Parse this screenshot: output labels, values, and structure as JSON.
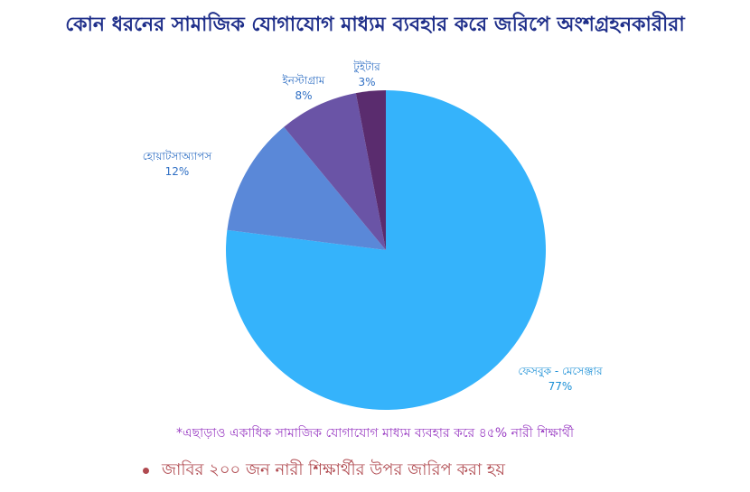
{
  "chart_data": {
    "type": "pie",
    "title": "কোন ধরনের সামাজিক যোগাযোগ মাধ্যম ব্যবহার করে জরিপে অংশগ্রহনকারীরা",
    "slices": [
      {
        "label": "ফেসবুক - মেসেঞ্জার",
        "value": 77,
        "value_text": "77%",
        "color": "#35b3fb",
        "label_color": "#1a8fd6"
      },
      {
        "label": "হোয়াটসাঅ্যাপস",
        "value": 12,
        "value_text": "12%",
        "color": "#5a88d8",
        "label_color": "#2f6fc4"
      },
      {
        "label": "ইনস্টাগ্রাম",
        "value": 8,
        "value_text": "8%",
        "color": "#6a54a6",
        "label_color": "#2f6fc4"
      },
      {
        "label": "টুইটার",
        "value": 3,
        "value_text": "3%",
        "color": "#5a2c6e",
        "label_color": "#2f6fc4"
      }
    ]
  },
  "footnote": "*এছাড়াও একাধিক সামাজিক যোগাযোগ মাধ্যম ব্যবহার করে ৪৫% নারী শিক্ষার্থী",
  "source_note": "জাবির ২০০ জন নারী শিক্ষার্থীর উপর জারিপ করা হয়"
}
